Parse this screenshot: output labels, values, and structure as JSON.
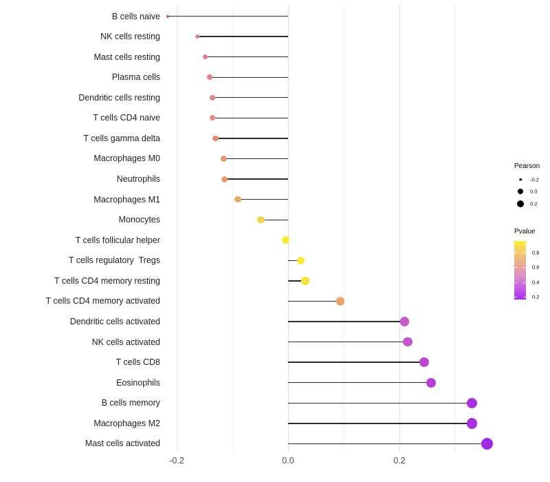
{
  "chart_data": {
    "type": "lollipop",
    "title": "",
    "xlabel": "",
    "ylabel": "",
    "xlim": [
      -0.26,
      0.4
    ],
    "grid": "vertical light-gray gridlines on white, no horizontal gridlines",
    "x_ticks": [
      {
        "label": "-0.2",
        "value": -0.2
      },
      {
        "label": "0.0",
        "value": 0.0
      },
      {
        "label": "0.2",
        "value": 0.2
      }
    ],
    "x_minor_gridlines": [
      -0.1,
      0.1,
      0.3
    ],
    "stem_color": "#2a2a2a",
    "rows": [
      {
        "label": "B cells naive",
        "pearson": -0.216,
        "dot_color": "#be52ae",
        "dot_size": 4
      },
      {
        "label": "NK cells resting",
        "pearson": -0.163,
        "dot_color": "#db7fa2",
        "dot_size": 6.5
      },
      {
        "label": "Mast cells resting",
        "pearson": -0.149,
        "dot_color": "#dc8292",
        "dot_size": 7
      },
      {
        "label": "Plasma cells",
        "pearson": -0.141,
        "dot_color": "#dd8688",
        "dot_size": 7.5
      },
      {
        "label": "Dendritic cells resting",
        "pearson": -0.136,
        "dot_color": "#de8980",
        "dot_size": 8
      },
      {
        "label": "T cells CD4 naive",
        "pearson": -0.136,
        "dot_color": "#df8c7c",
        "dot_size": 8
      },
      {
        "label": "T cells gamma delta",
        "pearson": -0.13,
        "dot_color": "#e08f78",
        "dot_size": 8.5
      },
      {
        "label": "Macrophages M0",
        "pearson": -0.115,
        "dot_color": "#e29972",
        "dot_size": 9
      },
      {
        "label": "Neutrophils",
        "pearson": -0.114,
        "dot_color": "#e39c70",
        "dot_size": 9
      },
      {
        "label": "Macrophages M1",
        "pearson": -0.09,
        "dot_color": "#e7ab67",
        "dot_size": 9.5
      },
      {
        "label": "Monocytes",
        "pearson": -0.049,
        "dot_color": "#f1d551",
        "dot_size": 10.5
      },
      {
        "label": "T cells follicular helper",
        "pearson": -0.004,
        "dot_color": "#f9ea3a",
        "dot_size": 11
      },
      {
        "label": "T cells regulatory  Tregs",
        "pearson": 0.023,
        "dot_color": "#f8e73d",
        "dot_size": 11.5
      },
      {
        "label": "T cells CD4 memory resting",
        "pearson": 0.031,
        "dot_color": "#f6e141",
        "dot_size": 11.5
      },
      {
        "label": "T cells CD4 memory activated",
        "pearson": 0.094,
        "dot_color": "#e9a96b",
        "dot_size": 12.5
      },
      {
        "label": "Dendritic cells activated",
        "pearson": 0.209,
        "dot_color": "#c65ac6",
        "dot_size": 13.5
      },
      {
        "label": "NK cells activated",
        "pearson": 0.215,
        "dot_color": "#c354cb",
        "dot_size": 13.5
      },
      {
        "label": "T cells CD8",
        "pearson": 0.244,
        "dot_color": "#bc45d2",
        "dot_size": 14
      },
      {
        "label": "Eosinophils",
        "pearson": 0.257,
        "dot_color": "#b940d7",
        "dot_size": 14.5
      },
      {
        "label": "B cells memory",
        "pearson": 0.33,
        "dot_color": "#a830df",
        "dot_size": 15.5
      },
      {
        "label": "Macrophages M2",
        "pearson": 0.33,
        "dot_color": "#a830df",
        "dot_size": 15.5
      },
      {
        "label": "Mast cells activated",
        "pearson": 0.357,
        "dot_color": "#9c2be3",
        "dot_size": 17
      }
    ],
    "legend": {
      "position": "right",
      "size_legend": {
        "title": "Pearson",
        "dot_color": "#000000",
        "items": [
          {
            "label": "-0.2",
            "dot_size": 3.5
          },
          {
            "label": "0.0",
            "dot_size": 8
          },
          {
            "label": "0.2",
            "dot_size": 10
          }
        ]
      },
      "color_legend": {
        "title": "Pvalue",
        "ticks": [
          {
            "label": "0.8",
            "value": 0.8
          },
          {
            "label": "0.6",
            "value": 0.6
          },
          {
            "label": "0.4",
            "value": 0.4
          },
          {
            "label": "0.2",
            "value": 0.2
          }
        ],
        "bar_value_top": 0.96,
        "bar_value_bottom": 0.17,
        "gradient_top_to_bottom": [
          "#fcec3a",
          "#f3c96c",
          "#eaa994",
          "#de90c6",
          "#c75ee8",
          "#a62bee"
        ]
      }
    }
  }
}
